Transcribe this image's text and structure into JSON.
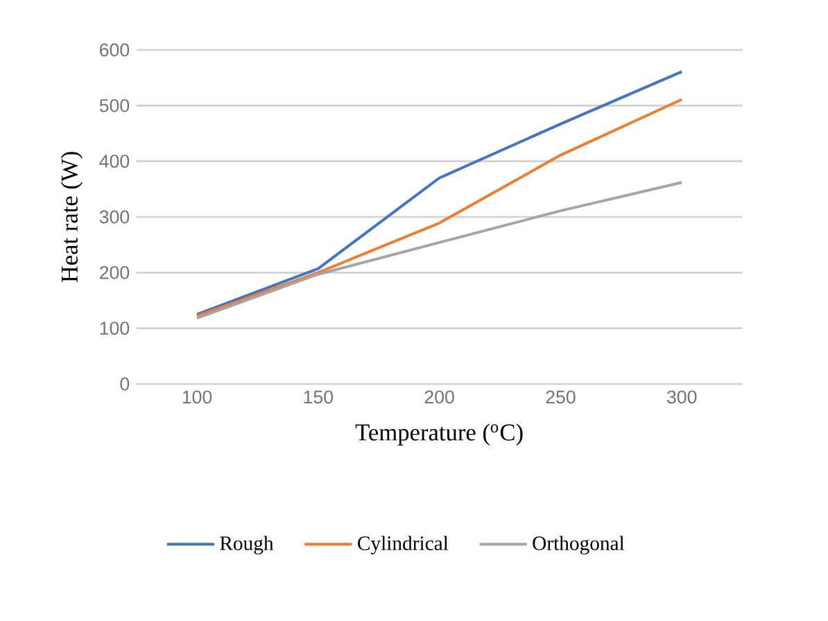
{
  "chart_data": {
    "type": "line",
    "xlabel": "Temperature ($^{o}$C)",
    "ylabel": "Heat rate (W)",
    "categories": [
      "100",
      "150",
      "200",
      "250",
      "300"
    ],
    "series": [
      {
        "name": "Rough",
        "color": "#4472c4",
        "values": [
          125,
          207,
          370,
          467,
          561
        ]
      },
      {
        "name": "Cylindrical",
        "color": "#ed7d31",
        "values": [
          122,
          200,
          289,
          411,
          511
        ]
      },
      {
        "name": "Orthogonal",
        "color": "#a5a5a5",
        "values": [
          118,
          197,
          254,
          311,
          362
        ]
      }
    ],
    "ylim": [
      0,
      600
    ],
    "yticks": [
      0,
      100,
      200,
      300,
      400,
      500,
      600
    ],
    "grid": "y",
    "legend": "bottom",
    "marker": "none",
    "line_style": "solid"
  }
}
